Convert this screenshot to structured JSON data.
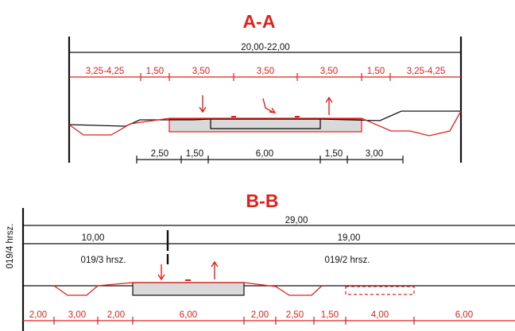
{
  "section_aa": {
    "title": "A-A",
    "total_width": "20,00-22,00",
    "red_dims": [
      "3,25-4,25",
      "1,50",
      "3,50",
      "3,50",
      "3,50",
      "1,50",
      "3,25-4,25"
    ],
    "bottom_dims": [
      "2,50",
      "1,50",
      "6,00",
      "1,50",
      "3,00"
    ]
  },
  "section_bb": {
    "title": "B-B",
    "total_width": "29,00",
    "left_part": "10,00",
    "right_part": "19,00",
    "left_parcel": "019/3 hrsz.",
    "right_parcel": "019/2 hrsz.",
    "side_parcel": "019/4 hrsz.",
    "red_dims": [
      "2,00",
      "3,00",
      "2,00",
      "6,00",
      "2,00",
      "2,50",
      "1,50",
      "4,00",
      "6,00"
    ]
  },
  "colors": {
    "accent": "#e0201c",
    "line": "#111111",
    "fill": "#d9d9d9"
  }
}
